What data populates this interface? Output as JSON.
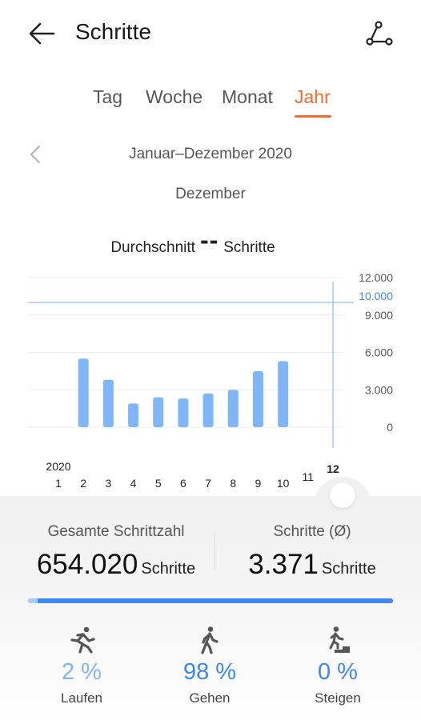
{
  "header": {
    "title": "Schritte"
  },
  "tabs": [
    {
      "label": "Tag",
      "active": false
    },
    {
      "label": "Woche",
      "active": false
    },
    {
      "label": "Monat",
      "active": false
    },
    {
      "label": "Jahr",
      "active": true
    }
  ],
  "period": {
    "range": "Januar–Dezember 2020",
    "selected_month": "Dezember"
  },
  "average": {
    "label": "Durchschnitt",
    "value": "--",
    "unit": "Schritte"
  },
  "chart_data": {
    "type": "bar",
    "categories": [
      "1",
      "2",
      "3",
      "4",
      "5",
      "6",
      "7",
      "8",
      "9",
      "10",
      "11",
      "12"
    ],
    "values": [
      0,
      5500,
      3800,
      1900,
      2400,
      2300,
      2700,
      3000,
      4500,
      5300,
      0,
      0
    ],
    "year_label": "2020",
    "selected_category": "12",
    "ylim": [
      0,
      12000
    ],
    "y_ticks": [
      "12.000",
      "9.000",
      "6.000",
      "3.000",
      "0"
    ],
    "goal_line": {
      "value": 10000,
      "label": "10.000"
    },
    "colors": {
      "bar": "#7fb6f9",
      "goal": "#3d87f5",
      "axis_text": "#555555"
    }
  },
  "stats": {
    "total": {
      "label": "Gesamte Schrittzahl",
      "value": "654.020",
      "unit": "Schritte"
    },
    "average": {
      "label": "Schritte (Ø)",
      "value": "3.371",
      "unit": "Schritte"
    }
  },
  "activities": [
    {
      "label": "Laufen",
      "pct": "2 %",
      "icon": "running-icon"
    },
    {
      "label": "Gehen",
      "pct": "98 %",
      "icon": "walking-icon"
    },
    {
      "label": "Steigen",
      "pct": "0 %",
      "icon": "climbing-icon"
    }
  ],
  "activity_fractions": {
    "run": 0.02,
    "walk": 0.98,
    "climb": 0.0
  }
}
